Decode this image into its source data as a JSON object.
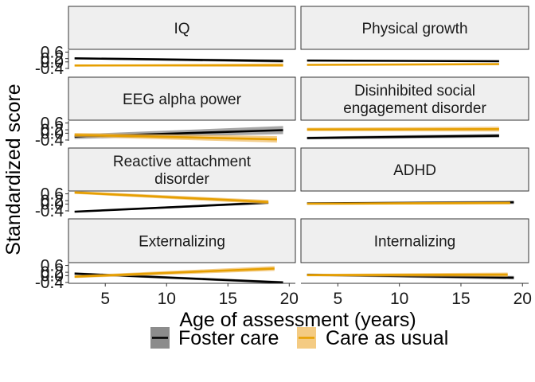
{
  "chart_data": {
    "type": "line",
    "xlabel": "Age of assessment (years)",
    "ylabel": "Standardized score",
    "xlim": [
      2,
      20.5
    ],
    "ylim": [
      -0.45,
      0.72
    ],
    "x_ticks": [
      5,
      10,
      15,
      20
    ],
    "x_tick_labels": [
      "5",
      "10",
      "15",
      "20"
    ],
    "y_ticks": [
      -0.4,
      0.0,
      0.2,
      0.6
    ],
    "y_tick_labels": [
      "-0.4",
      "0.0",
      "0.2",
      "0.6"
    ],
    "legend_position": "bottom",
    "grid": false,
    "facet_layout": {
      "rows": 4,
      "cols": 2
    },
    "legend": [
      {
        "name": "Foster care",
        "color": "#000000",
        "band_color": "#808080"
      },
      {
        "name": "Care as usual",
        "color": "#E69F00",
        "band_color": "#F0B95A"
      }
    ],
    "panels": [
      {
        "title_lines": [
          "IQ"
        ],
        "series": [
          {
            "name": "Foster care",
            "x": [
              2.5,
              19.5
            ],
            "y": [
              0.22,
              0.05
            ],
            "lower": [
              0.17,
              -0.05
            ],
            "upper": [
              0.27,
              0.16
            ]
          },
          {
            "name": "Care as usual",
            "x": [
              2.5,
              19.5
            ],
            "y": [
              -0.22,
              -0.2
            ],
            "lower": [
              -0.26,
              -0.3
            ],
            "upper": [
              -0.18,
              -0.1
            ]
          }
        ]
      },
      {
        "title_lines": [
          "Physical growth"
        ],
        "series": [
          {
            "name": "Foster care",
            "x": [
              2.5,
              18.1
            ],
            "y": [
              0.08,
              0.04
            ],
            "lower": [
              0.05,
              0.0
            ],
            "upper": [
              0.11,
              0.08
            ]
          },
          {
            "name": "Care as usual",
            "x": [
              2.5,
              18.1
            ],
            "y": [
              -0.18,
              -0.14
            ],
            "lower": [
              -0.21,
              -0.18
            ],
            "upper": [
              -0.15,
              -0.1
            ]
          }
        ]
      },
      {
        "title_lines": [
          "EEG alpha power"
        ],
        "series": [
          {
            "name": "Foster care",
            "x": [
              2.5,
              19.5
            ],
            "y": [
              -0.2,
              0.18
            ],
            "lower": [
              -0.34,
              -0.05
            ],
            "upper": [
              -0.06,
              0.42
            ]
          },
          {
            "name": "Care as usual",
            "x": [
              2.5,
              19.0
            ],
            "y": [
              -0.1,
              -0.36
            ],
            "lower": [
              -0.22,
              -0.55
            ],
            "upper": [
              0.02,
              -0.17
            ]
          }
        ]
      },
      {
        "title_lines": [
          "Disinhibited social",
          "engagement disorder"
        ],
        "series": [
          {
            "name": "Foster care",
            "x": [
              2.5,
              18.1
            ],
            "y": [
              -0.28,
              -0.15
            ],
            "lower": [
              -0.36,
              -0.26
            ],
            "upper": [
              -0.2,
              -0.04
            ]
          },
          {
            "name": "Care as usual",
            "x": [
              2.5,
              18.1
            ],
            "y": [
              0.22,
              0.24
            ],
            "lower": [
              0.12,
              0.1
            ],
            "upper": [
              0.32,
              0.38
            ]
          }
        ]
      },
      {
        "title_lines": [
          "Reactive attachment",
          "disorder"
        ],
        "series": [
          {
            "name": "Foster care",
            "x": [
              2.5,
              18.3
            ],
            "y": [
              -0.45,
              0.08
            ],
            "lower": [
              -0.49,
              0.0
            ],
            "upper": [
              -0.41,
              0.16
            ]
          },
          {
            "name": "Care as usual",
            "x": [
              2.5,
              18.3
            ],
            "y": [
              0.68,
              0.12
            ],
            "lower": [
              0.6,
              0.0
            ],
            "upper": [
              0.76,
              0.24
            ]
          }
        ]
      },
      {
        "title_lines": [
          "ADHD"
        ],
        "series": [
          {
            "name": "Foster care",
            "x": [
              2.5,
              19.3
            ],
            "y": [
              0.04,
              0.1
            ],
            "lower": [
              0.0,
              0.0
            ],
            "upper": [
              0.08,
              0.2
            ]
          },
          {
            "name": "Care as usual",
            "x": [
              2.5,
              19.0
            ],
            "y": [
              0.02,
              0.06
            ],
            "lower": [
              -0.04,
              -0.02
            ],
            "upper": [
              0.08,
              0.14
            ]
          }
        ]
      },
      {
        "title_lines": [
          "Externalizing"
        ],
        "series": [
          {
            "name": "Foster care",
            "x": [
              2.5,
              19.5
            ],
            "y": [
              0.12,
              -0.4
            ],
            "lower": [
              0.05,
              -0.48
            ],
            "upper": [
              0.19,
              -0.32
            ]
          },
          {
            "name": "Care as usual",
            "x": [
              2.5,
              18.8
            ],
            "y": [
              -0.06,
              0.42
            ],
            "lower": [
              -0.14,
              0.28
            ],
            "upper": [
              0.02,
              0.56
            ]
          }
        ]
      },
      {
        "title_lines": [
          "Internalizing"
        ],
        "series": [
          {
            "name": "Foster care",
            "x": [
              2.5,
              19.3
            ],
            "y": [
              0.05,
              -0.12
            ],
            "lower": [
              -0.02,
              -0.22
            ],
            "upper": [
              0.12,
              -0.02
            ]
          },
          {
            "name": "Care as usual",
            "x": [
              2.5,
              18.8
            ],
            "y": [
              0.03,
              0.06
            ],
            "lower": [
              -0.04,
              -0.06
            ],
            "upper": [
              0.1,
              0.18
            ]
          }
        ]
      }
    ]
  }
}
